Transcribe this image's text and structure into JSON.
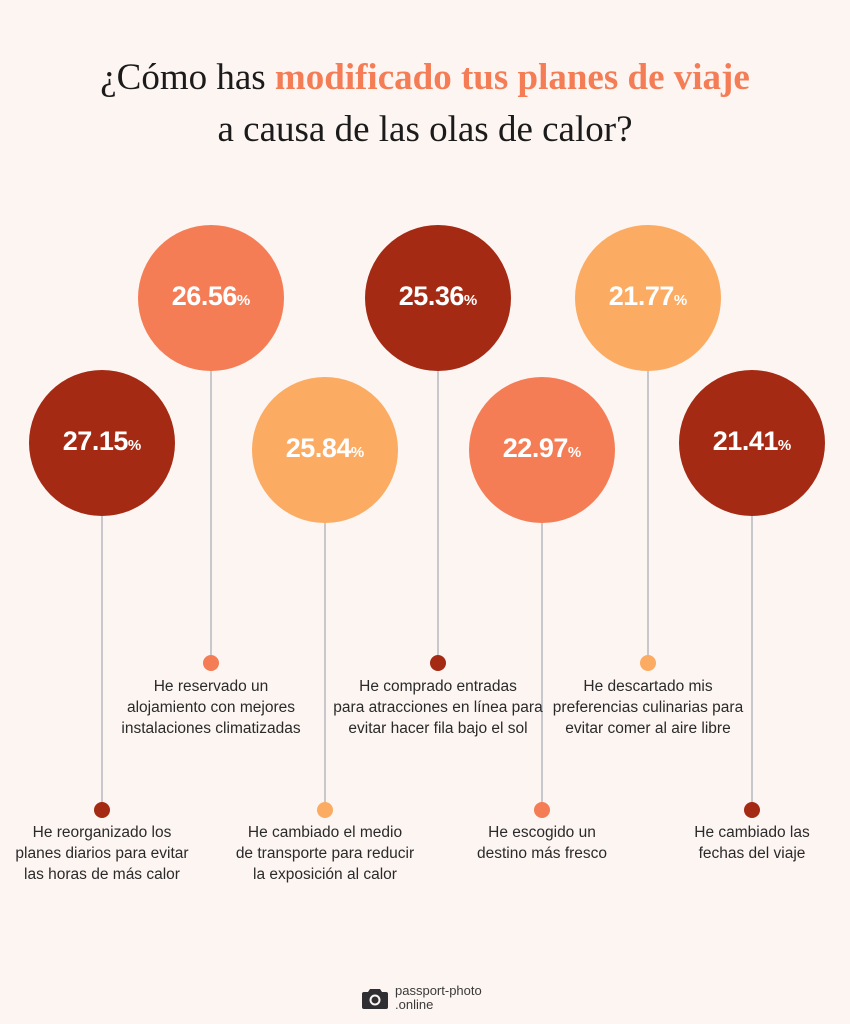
{
  "title": {
    "part1": "¿Cómo has ",
    "highlight": "modificado tus planes de viaje",
    "line2": "a causa de las olas de calor?"
  },
  "colors": {
    "dark_red": "#a42a14",
    "coral": "#f47d56",
    "light_orange": "#fbab62",
    "stem": "#c8c8cc",
    "highlight": "#f47d56"
  },
  "chart_data": {
    "type": "bar",
    "unit": "%",
    "title": "¿Cómo has modificado tus planes de viaje a causa de las olas de calor?",
    "categories": [
      "He reorganizado los planes diarios para evitar las horas de más calor",
      "He reservado un alojamiento con mejores instalaciones climatizadas",
      "He cambiado el medio de transporte para reducir la exposición al calor",
      "He comprado entradas para atracciones en línea para evitar hacer fila bajo el sol",
      "He escogido un destino más fresco",
      "He descartado mis preferencias culinarias para evitar comer al aire libre",
      "He cambiado las fechas del viaje"
    ],
    "values": [
      27.15,
      26.56,
      25.84,
      25.36,
      22.97,
      21.77,
      21.41
    ],
    "value_labels": [
      "27.15",
      "26.56",
      "25.84",
      "25.36",
      "22.97",
      "21.77",
      "21.41"
    ],
    "label_lines": [
      [
        "He reorganizado los",
        "planes diarios para evitar",
        "las horas de más calor"
      ],
      [
        "He reservado un",
        "alojamiento con mejores",
        "instalaciones climatizadas"
      ],
      [
        "He cambiado el medio",
        "de transporte para reducir",
        "la exposición al calor"
      ],
      [
        "He comprado entradas",
        "para atracciones en línea para",
        "evitar hacer fila bajo el sol"
      ],
      [
        "He escogido un",
        "destino más fresco"
      ],
      [
        "He descartado mis",
        "preferencias culinarias para",
        "evitar comer al aire libre"
      ],
      [
        "He cambiado las",
        "fechas del viaje"
      ]
    ],
    "point_colors": [
      "#a42a14",
      "#f47d56",
      "#fbab62",
      "#a42a14",
      "#f47d56",
      "#fbab62",
      "#a42a14"
    ],
    "grid": false,
    "legend": "none"
  },
  "logo": {
    "line1": "passport-photo",
    "line2": ".online",
    "icon": "camera-icon"
  }
}
